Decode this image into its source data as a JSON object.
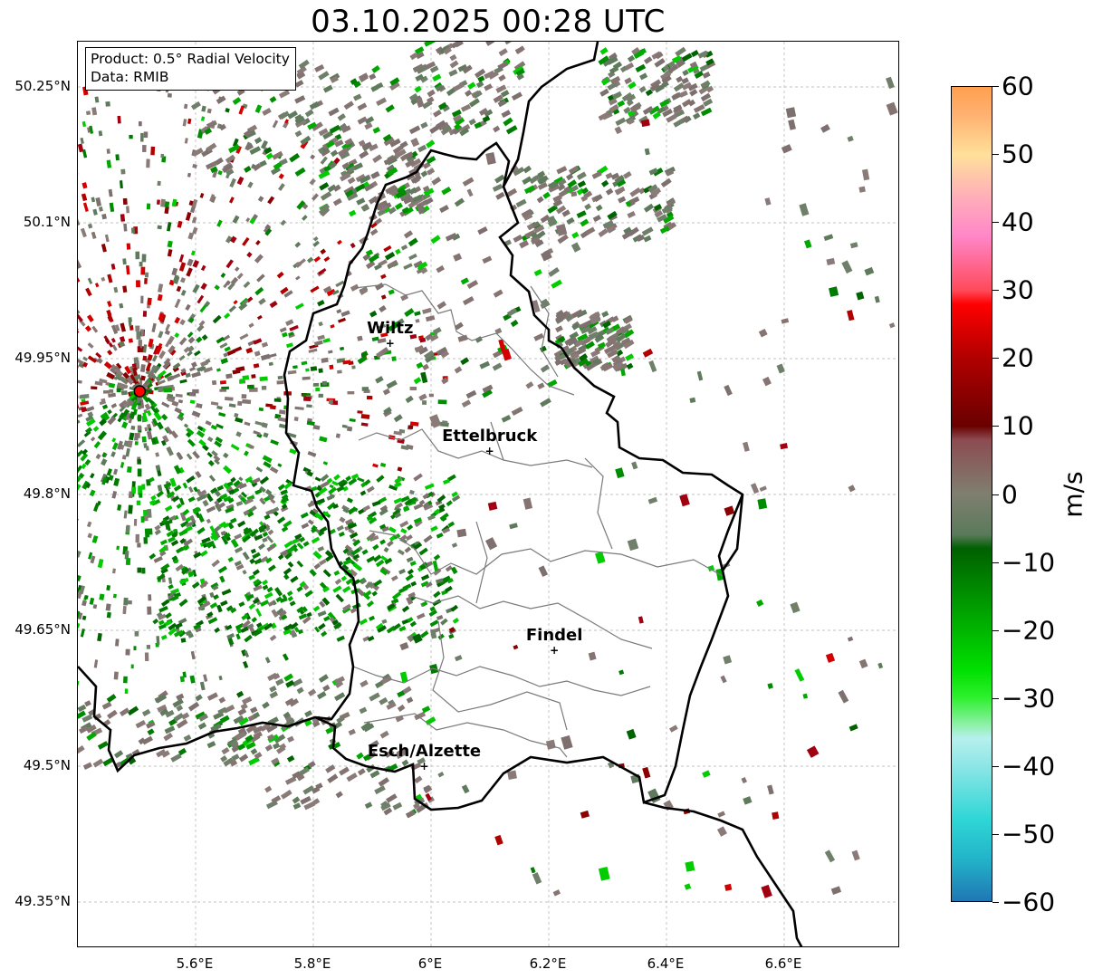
{
  "title": "03.10.2025 00:28 UTC",
  "info": {
    "product": "Product: 0.5° Radial Velocity",
    "source": "Data: RMIB"
  },
  "map": {
    "lon_range": [
      5.4,
      6.8
    ],
    "lat_range": [
      49.3,
      50.3
    ],
    "lat_ticks": [
      {
        "value": 50.25,
        "label": "50.25°N"
      },
      {
        "value": 50.1,
        "label": "50.1°N"
      },
      {
        "value": 49.95,
        "label": "49.95°N"
      },
      {
        "value": 49.8,
        "label": "49.8°N"
      },
      {
        "value": 49.65,
        "label": "49.65°N"
      },
      {
        "value": 49.5,
        "label": "49.5°N"
      },
      {
        "value": 49.35,
        "label": "49.35°N"
      }
    ],
    "lon_ticks": [
      {
        "value": 5.6,
        "label": "5.6°E"
      },
      {
        "value": 5.8,
        "label": "5.8°E"
      },
      {
        "value": 6.0,
        "label": "6°E"
      },
      {
        "value": 6.2,
        "label": "6.2°E"
      },
      {
        "value": 6.4,
        "label": "6.4°E"
      },
      {
        "value": 6.6,
        "label": "6.6°E"
      }
    ],
    "radar_site": {
      "lon": 5.505,
      "lat": 49.914,
      "color": "#ff0000"
    },
    "cities": [
      {
        "name": "Wiltz",
        "lon": 5.932,
        "lat": 49.966
      },
      {
        "name": "Ettelbruck",
        "lon": 6.101,
        "lat": 49.847
      },
      {
        "name": "Findel",
        "lon": 6.211,
        "lat": 49.627
      },
      {
        "name": "Esch/Alzette",
        "lon": 5.99,
        "lat": 49.499
      }
    ]
  },
  "colorbar": {
    "min": -60,
    "max": 60,
    "unit": "m/s",
    "ticks": [
      {
        "value": 60,
        "label": "60"
      },
      {
        "value": 50,
        "label": "50"
      },
      {
        "value": 40,
        "label": "40"
      },
      {
        "value": 30,
        "label": "30"
      },
      {
        "value": 20,
        "label": "20"
      },
      {
        "value": 10,
        "label": "10"
      },
      {
        "value": 0,
        "label": "0"
      },
      {
        "value": -10,
        "label": "−10"
      },
      {
        "value": -20,
        "label": "−20"
      },
      {
        "value": -30,
        "label": "−30"
      },
      {
        "value": -40,
        "label": "−40"
      },
      {
        "value": -50,
        "label": "−50"
      },
      {
        "value": -60,
        "label": "−60"
      }
    ],
    "stops": [
      {
        "v": -60,
        "color": "#1f77b4"
      },
      {
        "v": -54,
        "color": "#22b2c8"
      },
      {
        "v": -48,
        "color": "#2ed6d6"
      },
      {
        "v": -40,
        "color": "#8ee6e6"
      },
      {
        "v": -36,
        "color": "#b6f0ee"
      },
      {
        "v": -34,
        "color": "#8ef0a8"
      },
      {
        "v": -30,
        "color": "#2ef02e"
      },
      {
        "v": -26,
        "color": "#00e000"
      },
      {
        "v": -14,
        "color": "#008a00"
      },
      {
        "v": -8,
        "color": "#006000"
      },
      {
        "v": -6,
        "color": "#5a7a5a"
      },
      {
        "v": 0,
        "color": "#7f7f70"
      },
      {
        "v": 8,
        "color": "#8c4b50"
      },
      {
        "v": 10,
        "color": "#6a0000"
      },
      {
        "v": 20,
        "color": "#b00000"
      },
      {
        "v": 28,
        "color": "#ff0000"
      },
      {
        "v": 30,
        "color": "#ff4a5a"
      },
      {
        "v": 38,
        "color": "#ff86c8"
      },
      {
        "v": 44,
        "color": "#ffb0b8"
      },
      {
        "v": 50,
        "color": "#ffe09a"
      },
      {
        "v": 56,
        "color": "#ffb070"
      },
      {
        "v": 60,
        "color": "#ffa050"
      }
    ]
  }
}
